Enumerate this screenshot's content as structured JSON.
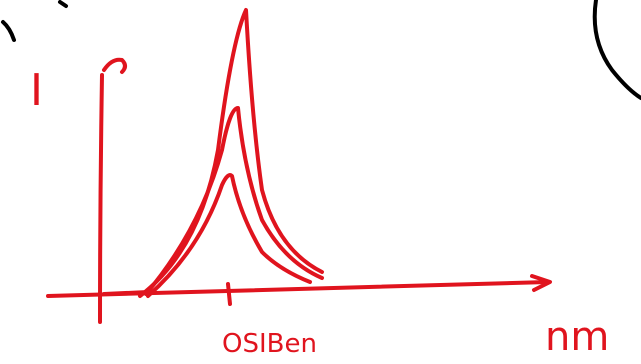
{
  "y_axis_label": "I",
  "x_axis_label": "nm",
  "x_mark_label": "OSIBen"
}
